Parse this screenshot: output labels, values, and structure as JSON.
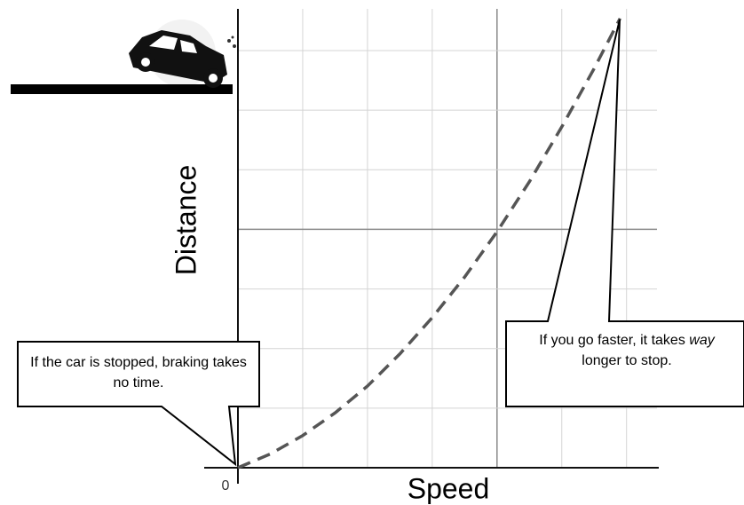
{
  "chart_data": {
    "type": "line",
    "x_label": "Speed",
    "y_label": "Distance",
    "x": [
      0,
      0.5,
      1,
      1.5,
      2,
      2.5,
      3,
      3.5,
      4,
      4.5,
      5,
      5.5,
      5.9
    ],
    "series": [
      {
        "color": "#555555",
        "dashed": true,
        "values": [
          0,
          0.23,
          0.54,
          0.92,
          1.37,
          1.91,
          2.52,
          3.2,
          3.96,
          4.8,
          5.72,
          6.7,
          7.54
        ]
      }
    ],
    "xlim": [
      0,
      6.47
    ],
    "ylim": [
      0,
      7.7
    ],
    "xticks": [
      0
    ],
    "xgrid": [
      1,
      2,
      3,
      4,
      5,
      6
    ],
    "ygrid": [
      1,
      2,
      3,
      4,
      5,
      6,
      7
    ],
    "major_grid_every": 4,
    "callout_left": {
      "text": "If the car is stopped, braking takes no time."
    },
    "callout_right": {
      "text_before": "If you go faster, it takes ",
      "text_emphasis": "way",
      "text_after": " longer to stop."
    }
  }
}
